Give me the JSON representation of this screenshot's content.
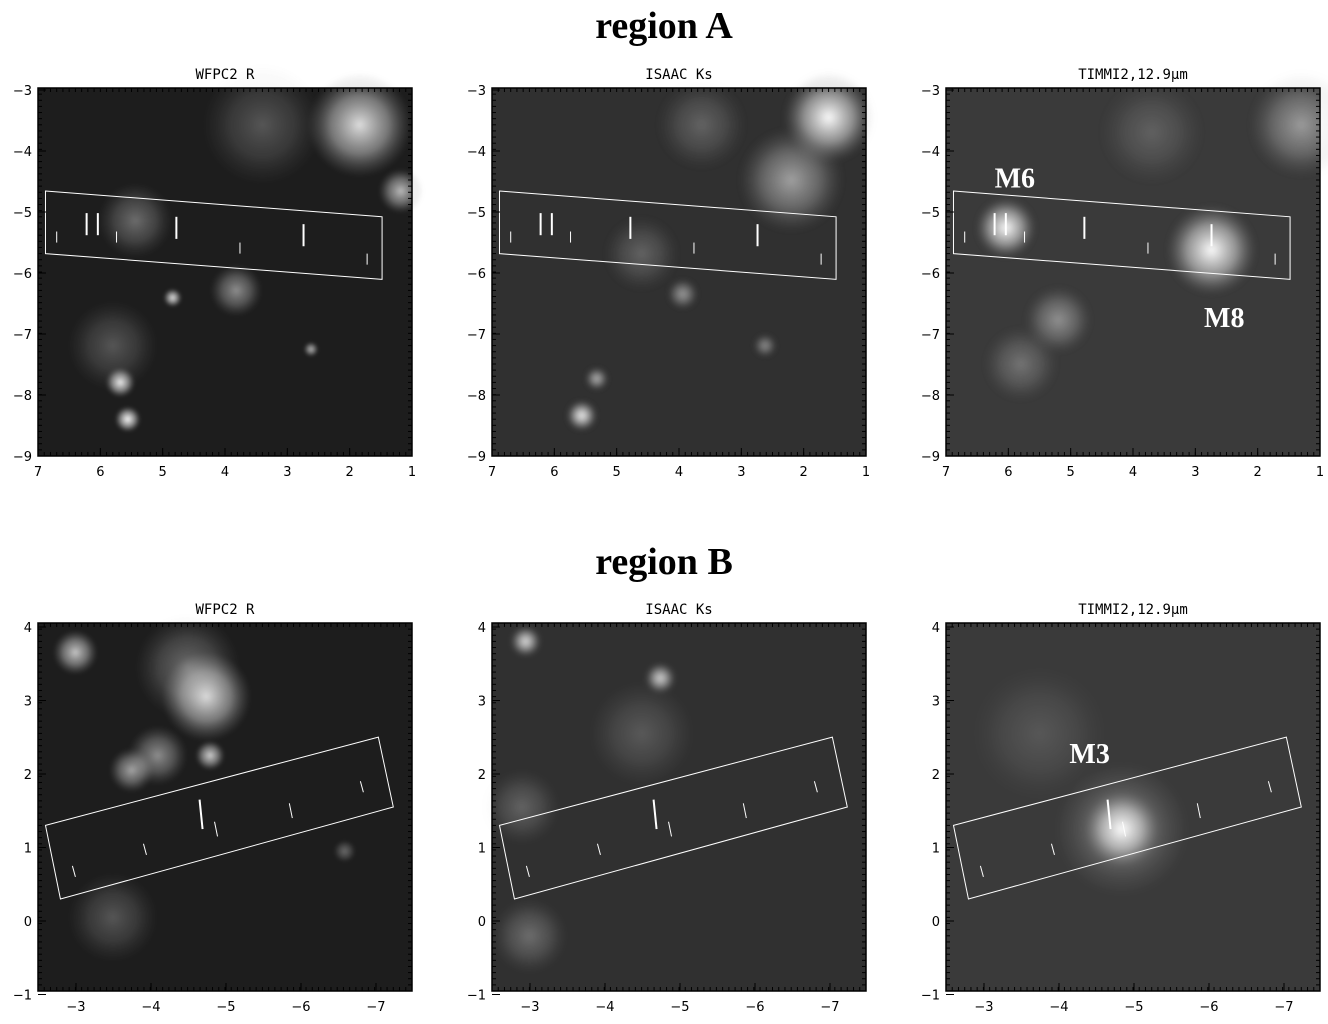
{
  "regions": [
    {
      "title": "region A",
      "panels": [
        {
          "title": "WFPC2 R",
          "x_ticks": [
            "7",
            "6",
            "5",
            "4",
            "3",
            "2",
            "1"
          ],
          "y_ticks": [
            "−3",
            "−4",
            "−5",
            "−6",
            "−7",
            "−8",
            "−9"
          ],
          "labels": []
        },
        {
          "title": "ISAAC Ks",
          "x_ticks": [
            "7",
            "6",
            "5",
            "4",
            "3",
            "2",
            "1"
          ],
          "y_ticks": [
            "−3",
            "−4",
            "−5",
            "−6",
            "−7",
            "−8",
            "−9"
          ],
          "labels": []
        },
        {
          "title": "TIMMI2,12.9μm",
          "x_ticks": [
            "7",
            "6",
            "5",
            "4",
            "3",
            "2",
            "1"
          ],
          "y_ticks": [
            "−3",
            "−4",
            "−5",
            "−6",
            "−7",
            "−8",
            "−9"
          ],
          "labels": [
            "M6",
            "M8"
          ]
        }
      ]
    },
    {
      "title": "region B",
      "panels": [
        {
          "title": "WFPC2 R",
          "x_ticks": [
            "−3",
            "−4",
            "−5",
            "−6",
            "−7"
          ],
          "y_ticks": [
            "4",
            "3",
            "2",
            "1",
            "0",
            "−1"
          ],
          "labels": []
        },
        {
          "title": "ISAAC Ks",
          "x_ticks": [
            "−3",
            "−4",
            "−5",
            "−6",
            "−7"
          ],
          "y_ticks": [
            "4",
            "3",
            "2",
            "1",
            "0",
            "−1"
          ],
          "labels": []
        },
        {
          "title": "TIMMI2,12.9μm",
          "x_ticks": [
            "−3",
            "−4",
            "−5",
            "−6",
            "−7"
          ],
          "y_ticks": [
            "4",
            "3",
            "2",
            "1",
            "0",
            "−1"
          ],
          "labels": [
            "M3"
          ]
        }
      ]
    }
  ]
}
